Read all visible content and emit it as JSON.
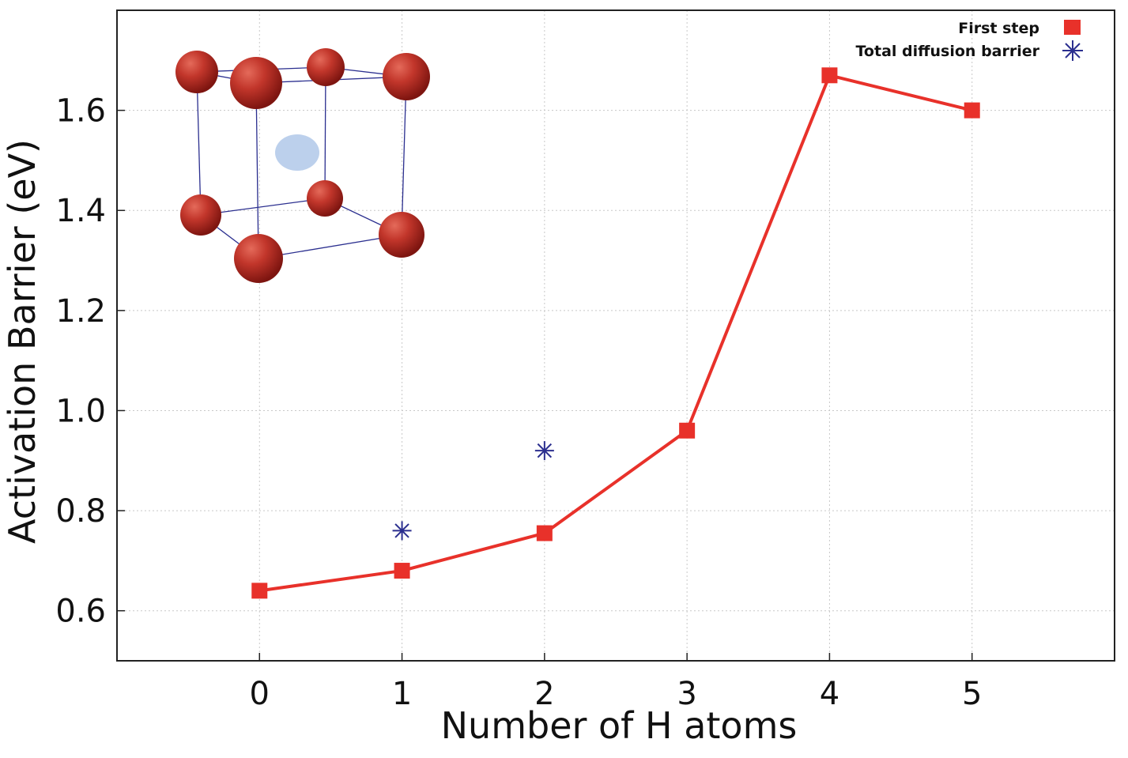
{
  "chart_data": {
    "type": "line",
    "title": "",
    "xlabel": "Number of H atoms",
    "ylabel": "Activation Barrier (eV)",
    "xlim": [
      -1,
      6.0
    ],
    "ylim": [
      0.5,
      1.8
    ],
    "x_ticks": [
      "0",
      "1",
      "2",
      "3",
      "4",
      "5"
    ],
    "y_ticks": [
      "0.6",
      "0.8",
      "1.0",
      "1.2",
      "1.4",
      "1.6"
    ],
    "grid": true,
    "legend_position": "top-right",
    "series": [
      {
        "name": "First step",
        "marker": "square",
        "line": true,
        "color": "#e8312a",
        "x": [
          0,
          1,
          2,
          3,
          4,
          5
        ],
        "y": [
          0.64,
          0.68,
          0.755,
          0.96,
          1.67,
          1.6
        ]
      },
      {
        "name": "Total diffusion barrier",
        "marker": "asterisk",
        "line": false,
        "color": "#2b2f8f",
        "x": [
          1,
          2
        ],
        "y": [
          0.76,
          0.92
        ]
      }
    ],
    "inset": "bcc-unit-cell-illustration"
  }
}
